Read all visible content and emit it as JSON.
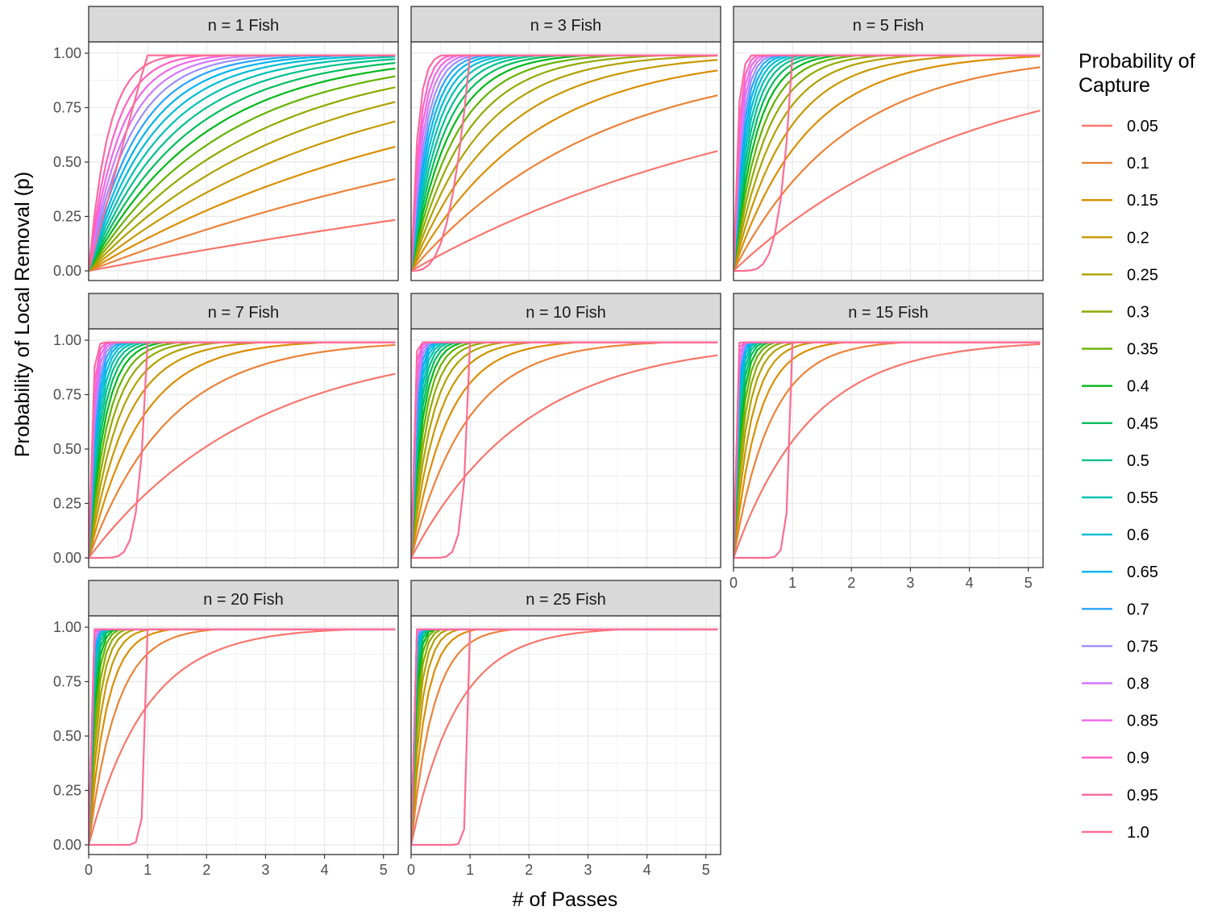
{
  "chart_data": {
    "type": "line",
    "facet_prefix": "n = ",
    "facet_suffix": " Fish",
    "facets": [
      1,
      3,
      5,
      7,
      10,
      15,
      20,
      25
    ],
    "xlabel": "# of Passes",
    "ylabel": "Probability of Local Removal (p)",
    "xlim": [
      0,
      5.25
    ],
    "ylim": [
      0,
      1
    ],
    "x_ticks": [
      "0",
      "1",
      "2",
      "3",
      "4",
      "5"
    ],
    "y_ticks": [
      "0.00",
      "0.25",
      "0.50",
      "0.75",
      "1.00"
    ],
    "grid": true,
    "legend": {
      "title": "Probability of Capture",
      "title_lines": [
        "Probability of",
        "Capture"
      ],
      "placement": "right",
      "entries": [
        "0.05",
        "0.1",
        "0.15",
        "0.2",
        "0.25",
        "0.3",
        "0.35",
        "0.4",
        "0.45",
        "0.5",
        "0.55",
        "0.6",
        "0.65",
        "0.7",
        "0.75",
        "0.8",
        "0.85",
        "0.9",
        "0.95",
        "1.0"
      ]
    },
    "series_values": [
      0.05,
      0.1,
      0.15,
      0.2,
      0.25,
      0.3,
      0.35,
      0.4,
      0.45,
      0.5,
      0.55,
      0.6,
      0.65,
      0.7,
      0.75,
      0.8,
      0.85,
      0.9,
      0.95,
      1.0
    ],
    "colors": [
      "#F8766D",
      "#EC8239",
      "#DB8E00",
      "#C79800",
      "#AEA200",
      "#8FAA00",
      "#64B200",
      "#00B81B",
      "#00BD5C",
      "#00C08D",
      "#00C1B2",
      "#00BCD6",
      "#00B3F2",
      "#29A3FF",
      "#9C8DFF",
      "#D277FF",
      "#F166E8",
      "#FF61C7",
      "#FF68A0",
      "#FF6C91"
    ],
    "x_max": 5.2,
    "x_step": 0.1,
    "curve_model": "p = 1 - (1 - q)^(x n)"
  }
}
